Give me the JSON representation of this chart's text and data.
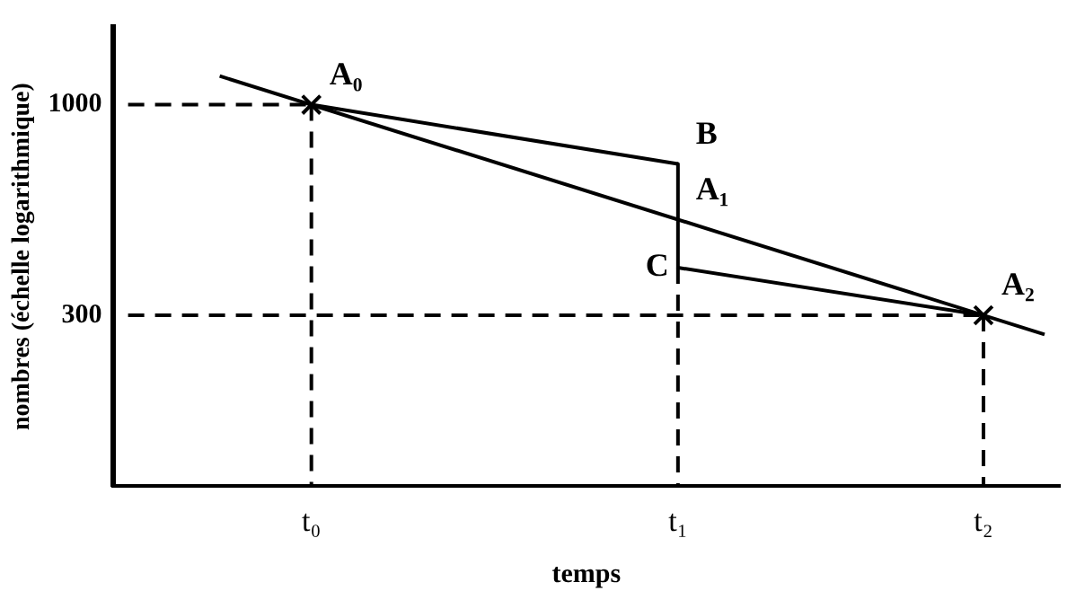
{
  "chart_data": {
    "type": "line",
    "xlabel": "temps",
    "ylabel": "nombres (échelle logarithmique)",
    "log": "y",
    "grid": false,
    "categories": [
      null,
      null,
      null,
      null,
      null,
      null,
      "t₀",
      null,
      null,
      null,
      null,
      null,
      null,
      null,
      null,
      null,
      null,
      null,
      "t₁",
      null,
      null,
      null,
      null,
      null,
      null,
      null,
      null,
      null,
      "t₂",
      null,
      null
    ],
    "ylim": [
      113,
      1560
    ],
    "yticks": [
      1000,
      300
    ],
    "series": [
      {
        "type": "line",
        "color": "#000000",
        "line_style": "solid",
        "values": [
          null,
          null,
          null,
          1178,
          null,
          null,
          null,
          null,
          null,
          null,
          null,
          null,
          null,
          null,
          null,
          null,
          null,
          null,
          null,
          null,
          null,
          null,
          null,
          null,
          null,
          null,
          null,
          null,
          null,
          null,
          269
        ]
      },
      {
        "type": "line",
        "color": "#000000",
        "line_style": "solid",
        "values": [
          null,
          null,
          null,
          null,
          null,
          null,
          1000,
          null,
          null,
          null,
          null,
          null,
          null,
          null,
          null,
          null,
          null,
          null,
          713,
          null,
          null,
          null,
          null,
          null,
          null,
          null,
          null,
          null,
          null,
          null,
          null
        ]
      },
      {
        "type": "line",
        "color": "#000000",
        "line_style": "solid",
        "x": [
          "t₁",
          "t₁"
        ],
        "values": [
          713,
          394
        ]
      },
      {
        "type": "line",
        "color": "#000000",
        "line_style": "solid",
        "values": [
          null,
          null,
          null,
          null,
          null,
          null,
          null,
          null,
          null,
          null,
          null,
          null,
          null,
          null,
          null,
          null,
          null,
          null,
          394,
          null,
          null,
          null,
          null,
          null,
          null,
          null,
          null,
          null,
          300,
          null,
          null
        ]
      },
      {
        "type": "line",
        "color": "#000000",
        "line_style": "dashed",
        "values": [
          1000,
          null,
          null,
          null,
          null,
          null,
          1000,
          null,
          null,
          null,
          null,
          null,
          null,
          null,
          null,
          null,
          null,
          null,
          null,
          null,
          null,
          null,
          null,
          null,
          null,
          null,
          null,
          null,
          null,
          null,
          null
        ]
      },
      {
        "type": "line",
        "color": "#000000",
        "line_style": "dashed",
        "values": [
          300,
          null,
          null,
          null,
          null,
          null,
          null,
          null,
          null,
          null,
          null,
          null,
          null,
          null,
          null,
          null,
          null,
          null,
          null,
          null,
          null,
          null,
          null,
          null,
          null,
          null,
          null,
          null,
          300,
          null,
          null
        ]
      },
      {
        "type": "line",
        "color": "#000000",
        "line_style": "dashed",
        "x": [
          "t₀",
          "t₀"
        ],
        "values": [
          1000,
          113
        ]
      },
      {
        "type": "line",
        "color": "#000000",
        "line_style": "dashed",
        "x": [
          "t₁",
          "t₁"
        ],
        "values": [
          394,
          113
        ]
      },
      {
        "type": "line",
        "color": "#000000",
        "line_style": "dashed",
        "x": [
          "t₂",
          "t₂"
        ],
        "values": [
          300,
          113
        ]
      },
      {
        "type": "scatter",
        "color": "#000000",
        "marker": "cross",
        "x": [
          "t₀",
          "t₂"
        ],
        "values": [
          1000,
          300
        ]
      }
    ],
    "annotations": [
      {
        "text": "A₀",
        "x": "t₀",
        "y": 1000
      },
      {
        "text": "B",
        "x": "t₁",
        "y": 713
      },
      {
        "text": "A₁",
        "x": "t₁",
        "y": 519
      },
      {
        "text": "C",
        "x": "t₁",
        "y": 394
      },
      {
        "text": "A₂",
        "x": "t₂",
        "y": 300
      }
    ]
  }
}
